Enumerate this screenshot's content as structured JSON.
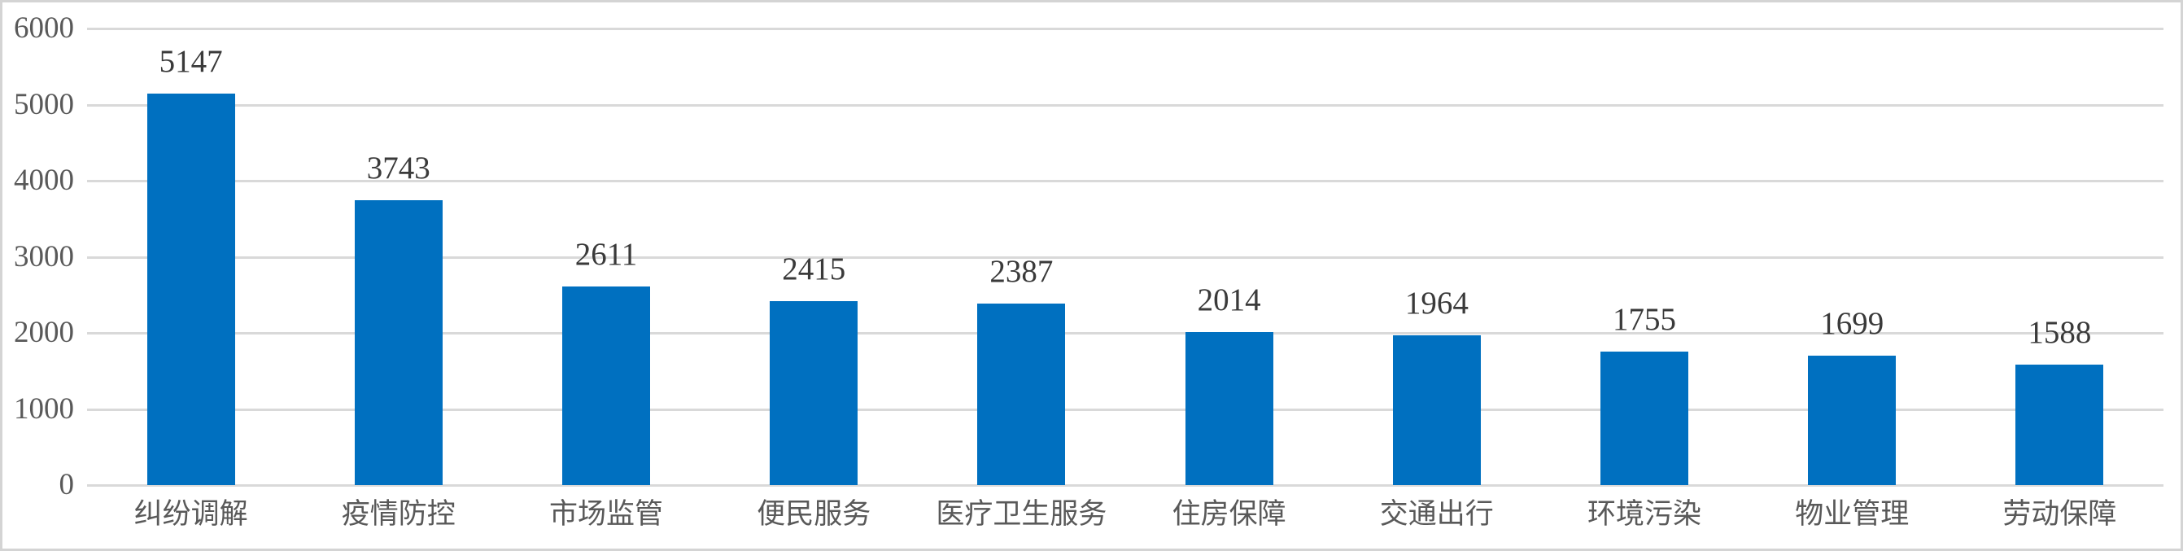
{
  "chart_data": {
    "type": "bar",
    "categories": [
      "纠纷调解",
      "疫情防控",
      "市场监管",
      "便民服务",
      "医疗卫生服务",
      "住房保障",
      "交通出行",
      "环境污染",
      "物业管理",
      "劳动保障"
    ],
    "values": [
      5147,
      3743,
      2611,
      2415,
      2387,
      2014,
      1964,
      1755,
      1699,
      1588
    ],
    "title": "",
    "xlabel": "",
    "ylabel": "",
    "ylim": [
      0,
      6000
    ],
    "yticks": [
      0,
      1000,
      2000,
      3000,
      4000,
      5000,
      6000
    ],
    "grid": true,
    "legend": false,
    "data_labels": true,
    "bar_color": "#0070c0",
    "gridline_color": "#d9d9d9",
    "axis_label_color": "#595959",
    "value_label_color": "#3a3a3a",
    "border_color": "#d4d4d4"
  }
}
